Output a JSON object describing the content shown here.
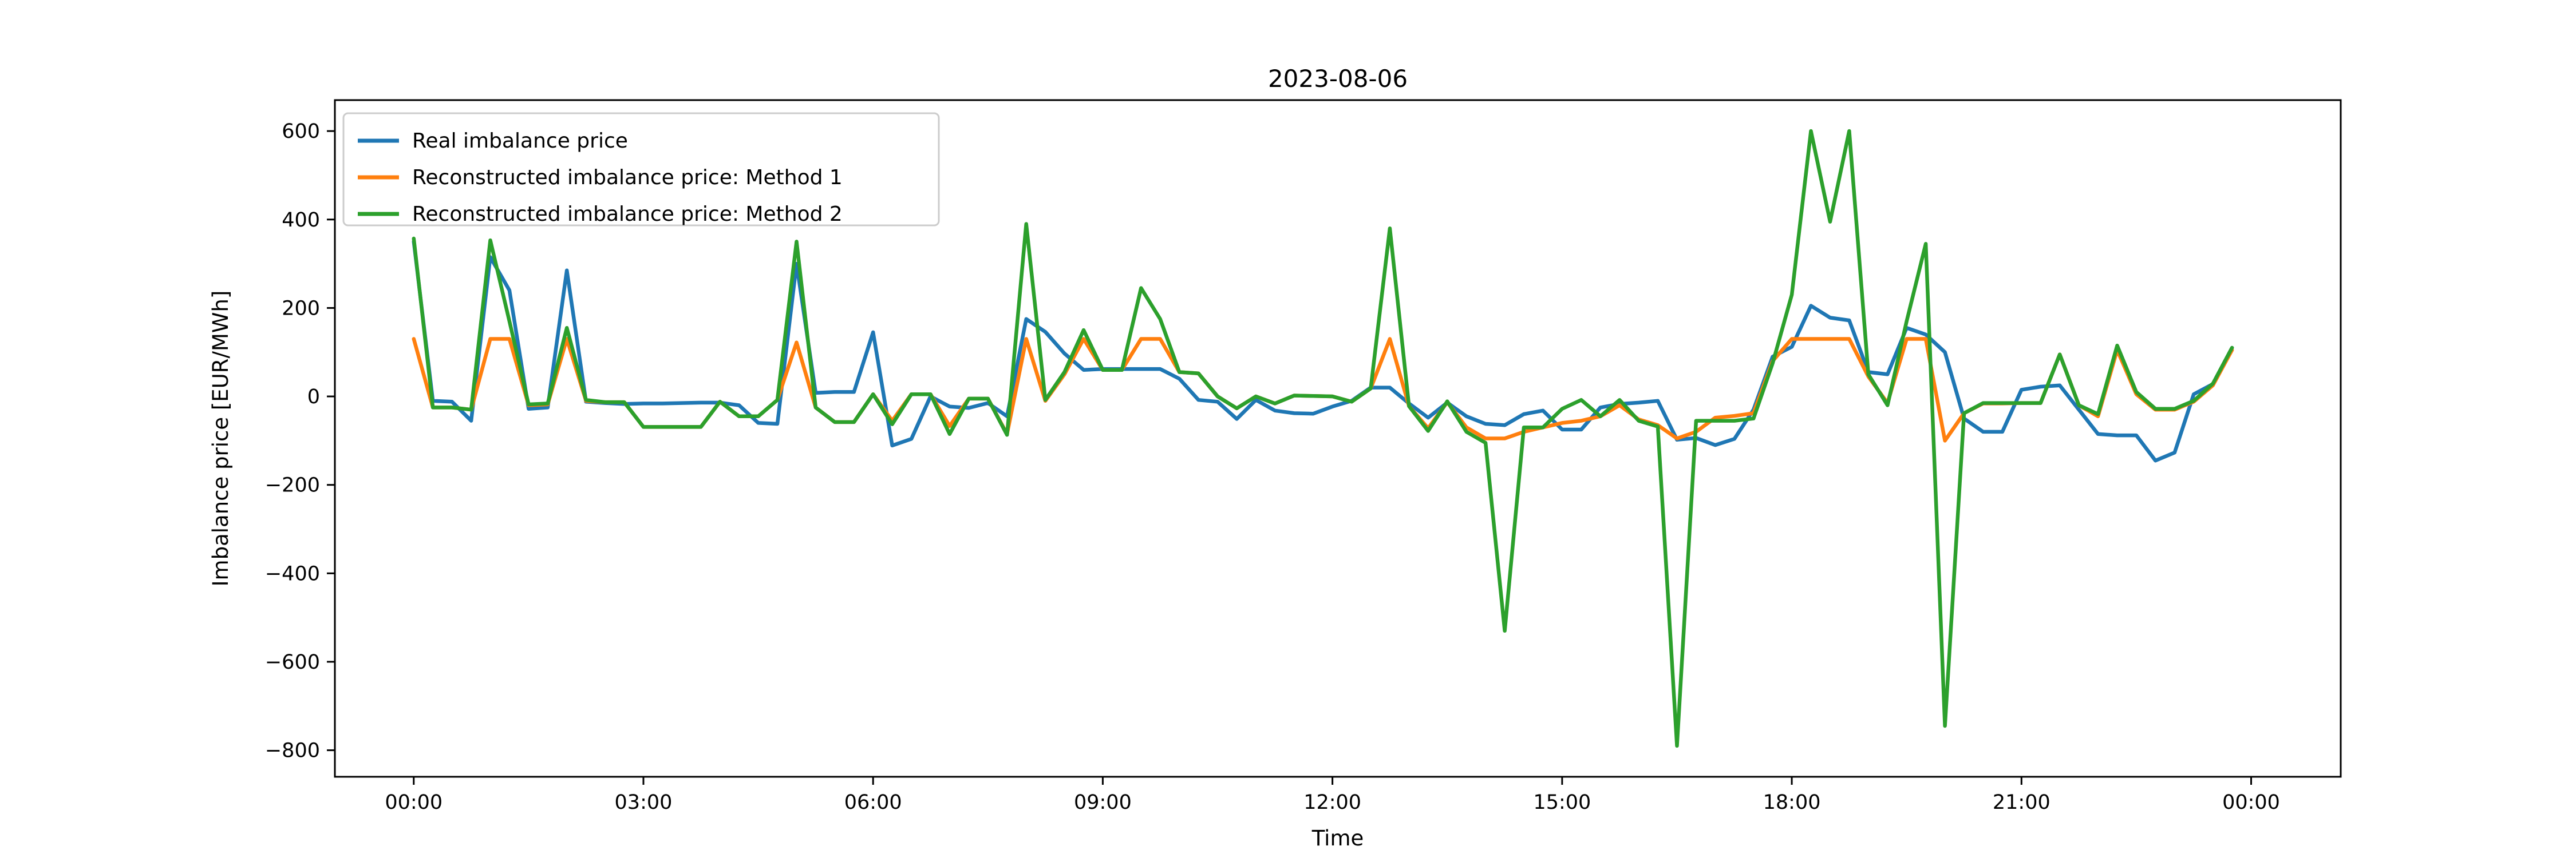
{
  "title": "2023-08-06",
  "axes": {
    "xlabel": "Time",
    "ylabel": "Imbalance price [EUR/MWh]",
    "x_tick_labels": [
      "00:00",
      "03:00",
      "06:00",
      "09:00",
      "12:00",
      "15:00",
      "18:00",
      "21:00",
      "00:00"
    ],
    "x_tick_hours": [
      0,
      3,
      6,
      9,
      12,
      15,
      18,
      21,
      24
    ],
    "y_ticks": [
      600,
      400,
      200,
      0,
      -200,
      -400,
      -600,
      -800
    ],
    "ylim": [
      -860,
      670
    ],
    "xlim_hours": [
      -1.03,
      25.17
    ]
  },
  "legend": [
    {
      "label": "Real imbalance price",
      "color": "#1f77b4"
    },
    {
      "label": "Reconstructed imbalance price: Method 1",
      "color": "#ff7f0e"
    },
    {
      "label": "Reconstructed imbalance price: Method 2",
      "color": "#2ca02c"
    }
  ],
  "chart_data": {
    "type": "line",
    "title": "2023-08-06",
    "xlabel": "Time",
    "ylabel": "Imbalance price [EUR/MWh]",
    "grid": false,
    "legend_position": "upper left",
    "x_interval_minutes": 15,
    "x": [
      "00:00",
      "00:15",
      "00:30",
      "00:45",
      "01:00",
      "01:15",
      "01:30",
      "01:45",
      "02:00",
      "02:15",
      "02:30",
      "02:45",
      "03:00",
      "03:15",
      "03:30",
      "03:45",
      "04:00",
      "04:15",
      "04:30",
      "04:45",
      "05:00",
      "05:15",
      "05:30",
      "05:45",
      "06:00",
      "06:15",
      "06:30",
      "06:45",
      "07:00",
      "07:15",
      "07:30",
      "07:45",
      "08:00",
      "08:15",
      "08:30",
      "08:45",
      "09:00",
      "09:15",
      "09:30",
      "09:45",
      "10:00",
      "10:15",
      "10:30",
      "10:45",
      "11:00",
      "11:15",
      "11:30",
      "11:45",
      "12:00",
      "12:15",
      "12:30",
      "12:45",
      "13:00",
      "13:15",
      "13:30",
      "13:45",
      "14:00",
      "14:15",
      "14:30",
      "14:45",
      "15:00",
      "15:15",
      "15:30",
      "15:45",
      "16:00",
      "16:15",
      "16:30",
      "16:45",
      "17:00",
      "17:15",
      "17:30",
      "17:45",
      "18:00",
      "18:15",
      "18:30",
      "18:45",
      "19:00",
      "19:15",
      "19:30",
      "19:45",
      "20:00",
      "20:15",
      "20:30",
      "20:45",
      "21:00",
      "21:15",
      "21:30",
      "21:45",
      "22:00",
      "22:15",
      "22:30",
      "22:45",
      "23:00",
      "23:15",
      "23:30",
      "23:45"
    ],
    "series": [
      {
        "name": "Real imbalance price",
        "color": "#1f77b4",
        "values": [
          350,
          -10,
          -12,
          -55,
          315,
          240,
          -28,
          -25,
          285,
          -12,
          -15,
          -17,
          -16,
          -16,
          -15,
          -14,
          -14,
          -20,
          -60,
          -62,
          300,
          8,
          10,
          10,
          145,
          -111,
          -96,
          0,
          -23,
          -26,
          -15,
          -45,
          175,
          146,
          97,
          60,
          62,
          62,
          62,
          62,
          40,
          -8,
          -12,
          -51,
          -8,
          -32,
          -38,
          -39,
          -23,
          -10,
          20,
          20,
          -16,
          -48,
          -14,
          -45,
          -62,
          -65,
          -40,
          -32,
          -75,
          -75,
          -25,
          -17,
          -14,
          -10,
          -98,
          -94,
          -110,
          -96,
          -30,
          90,
          112,
          205,
          178,
          172,
          55,
          50,
          155,
          140,
          100,
          -50,
          -80,
          -80,
          15,
          22,
          25,
          -30,
          -85,
          -88,
          -88,
          -145,
          -127,
          5,
          28,
          110
        ]
      },
      {
        "name": "Reconstructed imbalance price: Method 1",
        "color": "#ff7f0e",
        "values": [
          130,
          -25,
          -25,
          -30,
          130,
          130,
          -20,
          -18,
          130,
          -10,
          -13,
          -13,
          -69,
          -69,
          -69,
          -69,
          -12,
          -45,
          -45,
          -8,
          122,
          -25,
          -58,
          -58,
          5,
          -55,
          5,
          5,
          -67,
          -5,
          -5,
          -85,
          130,
          -10,
          50,
          130,
          60,
          60,
          130,
          130,
          55,
          52,
          0,
          -27,
          0,
          -16,
          2,
          1,
          0,
          -12,
          18,
          130,
          -22,
          -72,
          -13,
          -70,
          -95,
          -95,
          -80,
          -70,
          -60,
          -55,
          -45,
          -20,
          -52,
          -65,
          -95,
          -80,
          -48,
          -44,
          -38,
          80,
          130,
          130,
          130,
          130,
          45,
          -15,
          130,
          130,
          -100,
          -38,
          -16,
          -16,
          -15,
          -15,
          95,
          -20,
          -45,
          105,
          5,
          -30,
          -30,
          -12,
          25,
          105
        ]
      },
      {
        "name": "Reconstructed imbalance price: Method 2",
        "color": "#2ca02c",
        "values": [
          357,
          -25,
          -25,
          -30,
          353,
          170,
          -18,
          -16,
          155,
          -8,
          -13,
          -13,
          -69,
          -69,
          -69,
          -69,
          -12,
          -45,
          -45,
          -8,
          350,
          -25,
          -58,
          -58,
          5,
          -63,
          5,
          5,
          -85,
          -5,
          -5,
          -87,
          390,
          -8,
          55,
          150,
          60,
          60,
          245,
          175,
          55,
          52,
          0,
          -27,
          0,
          -16,
          2,
          1,
          0,
          -12,
          18,
          380,
          -22,
          -78,
          -11,
          -80,
          -105,
          -530,
          -70,
          -70,
          -28,
          -8,
          -45,
          -8,
          -55,
          -68,
          -790,
          -55,
          -55,
          -55,
          -50,
          75,
          230,
          600,
          395,
          600,
          50,
          -20,
          170,
          345,
          -745,
          -38,
          -15,
          -15,
          -15,
          -15,
          95,
          -20,
          -40,
          115,
          10,
          -28,
          -28,
          -10,
          29,
          110
        ]
      }
    ]
  },
  "geometry_note": "y axis range approx -860 to 670 EUR/MWh; x axis 00:00 to 00:00 next day, ticks every 3 hours"
}
